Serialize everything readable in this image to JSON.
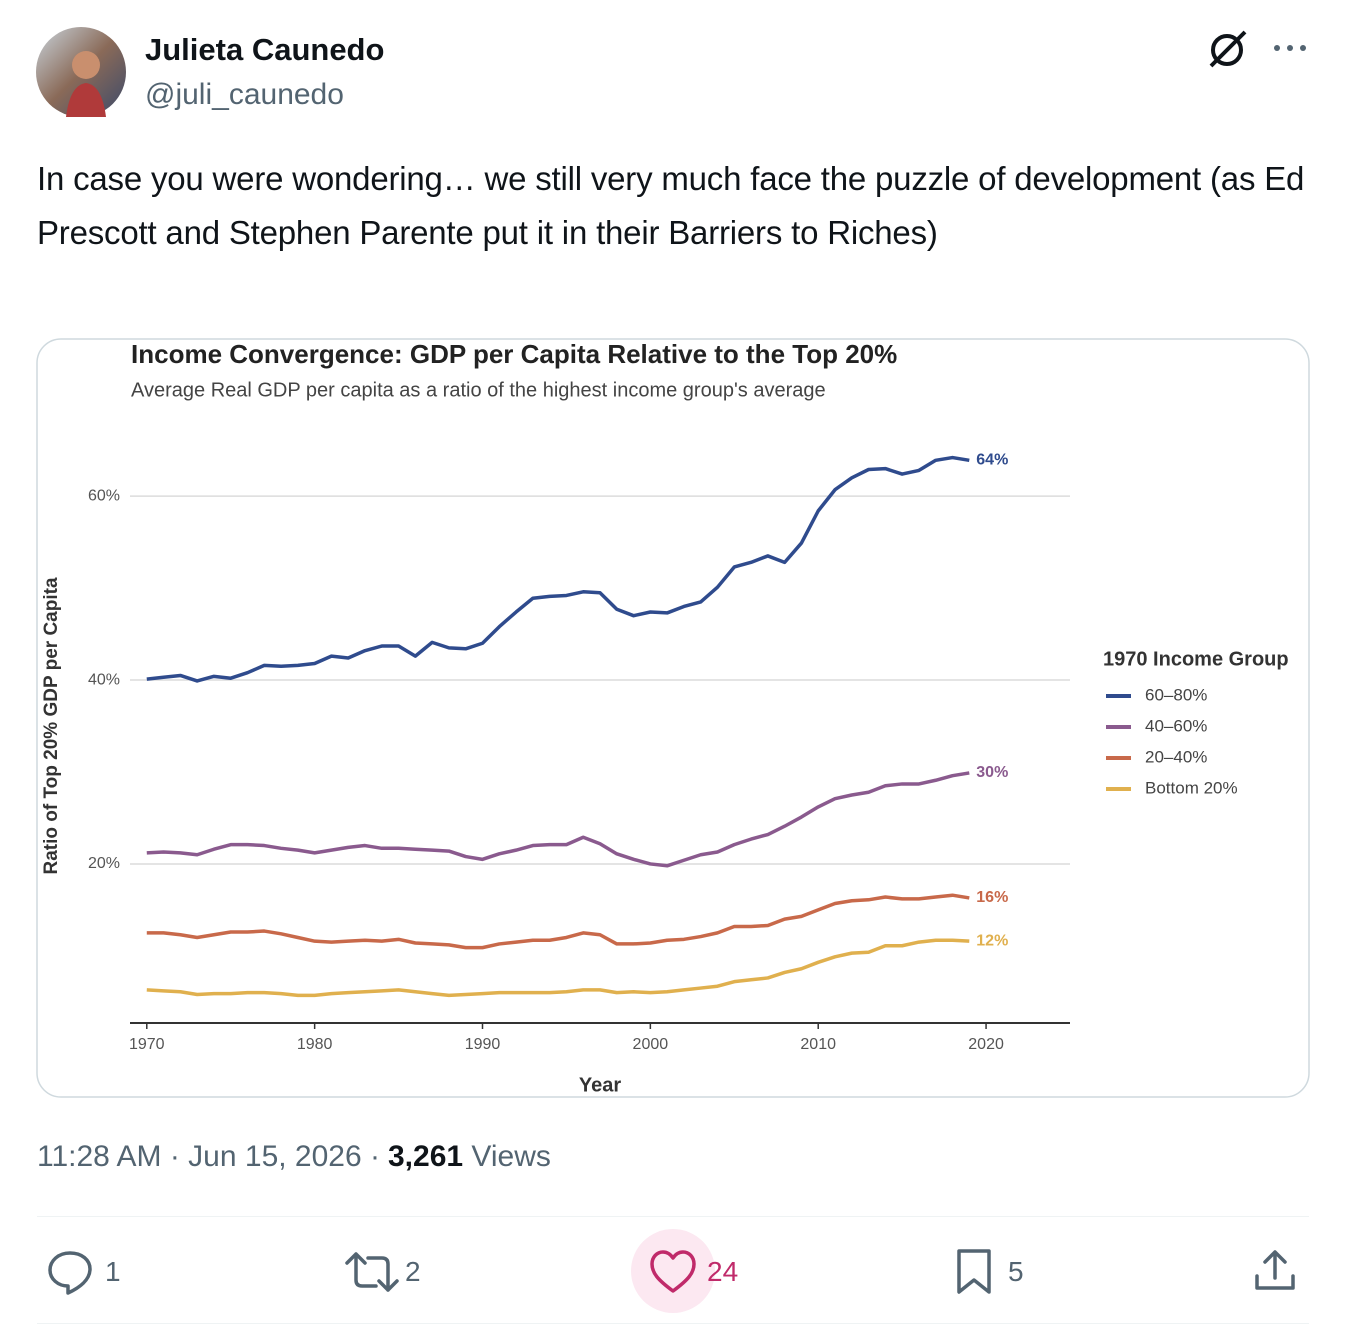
{
  "author": {
    "name": "Julieta Caunedo",
    "handle": "@juli_caunedo"
  },
  "text": "In case you were wondering… we still very much face the puzzle of development (as Ed Prescott and Stephen Parente put it in their Barriers to Riches)",
  "meta": {
    "timestamp": "11:28 AM · Jun 15, 2026 ·",
    "views": "3,261",
    "views_label": "Views"
  },
  "stats": {
    "replies": "1",
    "reposts": "2",
    "likes": "24",
    "bookmarks": "5"
  },
  "chart_data": {
    "type": "line",
    "title": "Income Convergence: GDP per Capita Relative to the Top 20%",
    "subtitle": "Average Real GDP per capita as a ratio of the highest income group's average",
    "x_label": "Year",
    "y_label": "Ratio of Top 20% GDP per Capita",
    "legend_title": "1970 Income Group",
    "x": [
      1970,
      1971,
      1972,
      1973,
      1974,
      1975,
      1976,
      1977,
      1978,
      1979,
      1980,
      1981,
      1982,
      1983,
      1984,
      1985,
      1986,
      1987,
      1988,
      1989,
      1990,
      1991,
      1992,
      1993,
      1994,
      1995,
      1996,
      1997,
      1998,
      1999,
      2000,
      2001,
      2002,
      2003,
      2004,
      2005,
      2006,
      2007,
      2008,
      2009,
      2010,
      2011,
      2012,
      2013,
      2014,
      2015,
      2016,
      2017,
      2018,
      2019
    ],
    "series": [
      {
        "name": "60–80%",
        "color": "#2f4b8d",
        "end_label": "64%",
        "values": [
          40.1,
          40.3,
          40.5,
          39.9,
          40.4,
          40.2,
          40.8,
          41.6,
          41.5,
          41.6,
          41.8,
          42.6,
          42.4,
          43.2,
          43.7,
          43.7,
          42.6,
          44.1,
          43.5,
          43.4,
          44.0,
          45.8,
          47.4,
          48.9,
          49.1,
          49.2,
          49.6,
          49.5,
          47.7,
          47.0,
          47.4,
          47.3,
          48.0,
          48.5,
          50.1,
          52.3,
          52.8,
          53.5,
          52.8,
          54.9,
          58.4,
          60.7,
          62.0,
          62.9,
          63.0,
          62.4,
          62.8,
          63.9,
          64.2,
          63.9
        ]
      },
      {
        "name": "40–60%",
        "color": "#8a5a8e",
        "end_label": "30%",
        "values": [
          21.2,
          21.3,
          21.2,
          21.0,
          21.6,
          22.1,
          22.1,
          22.0,
          21.7,
          21.5,
          21.2,
          21.5,
          21.8,
          22.0,
          21.7,
          21.7,
          21.6,
          21.5,
          21.4,
          20.8,
          20.5,
          21.1,
          21.5,
          22.0,
          22.1,
          22.1,
          22.9,
          22.2,
          21.1,
          20.5,
          20.0,
          19.8,
          20.4,
          21.0,
          21.3,
          22.1,
          22.7,
          23.2,
          24.1,
          25.1,
          26.2,
          27.1,
          27.5,
          27.8,
          28.5,
          28.7,
          28.7,
          29.1,
          29.6,
          29.9
        ]
      },
      {
        "name": "20–40%",
        "color": "#c8694a",
        "end_label": "16%",
        "values": [
          12.5,
          12.5,
          12.3,
          12.0,
          12.3,
          12.6,
          12.6,
          12.7,
          12.4,
          12.0,
          11.6,
          11.5,
          11.6,
          11.7,
          11.6,
          11.8,
          11.4,
          11.3,
          11.2,
          10.9,
          10.9,
          11.3,
          11.5,
          11.7,
          11.7,
          12.0,
          12.5,
          12.3,
          11.3,
          11.3,
          11.4,
          11.7,
          11.8,
          12.1,
          12.5,
          13.2,
          13.2,
          13.3,
          14.0,
          14.3,
          15.0,
          15.7,
          16.0,
          16.1,
          16.4,
          16.2,
          16.2,
          16.4,
          16.6,
          16.3
        ]
      },
      {
        "name": "Bottom 20%",
        "color": "#e0b04e",
        "end_label": "12%",
        "values": [
          6.3,
          6.2,
          6.1,
          5.8,
          5.9,
          5.9,
          6.0,
          6.0,
          5.9,
          5.7,
          5.7,
          5.9,
          6.0,
          6.1,
          6.2,
          6.3,
          6.1,
          5.9,
          5.7,
          5.8,
          5.9,
          6.0,
          6.0,
          6.0,
          6.0,
          6.1,
          6.3,
          6.3,
          6.0,
          6.1,
          6.0,
          6.1,
          6.3,
          6.5,
          6.7,
          7.2,
          7.4,
          7.6,
          8.2,
          8.6,
          9.3,
          9.9,
          10.3,
          10.4,
          11.1,
          11.1,
          11.5,
          11.7,
          11.7,
          11.6
        ]
      }
    ],
    "xlim": [
      1969,
      2025
    ],
    "xticks": [
      1970,
      1980,
      1990,
      2000,
      2010,
      2020
    ],
    "ylim": [
      2.7,
      66
    ],
    "yticks": [
      {
        "value": 20,
        "label": "20%"
      },
      {
        "value": 40,
        "label": "40%"
      },
      {
        "value": 60,
        "label": "60%"
      }
    ],
    "grid": true
  }
}
